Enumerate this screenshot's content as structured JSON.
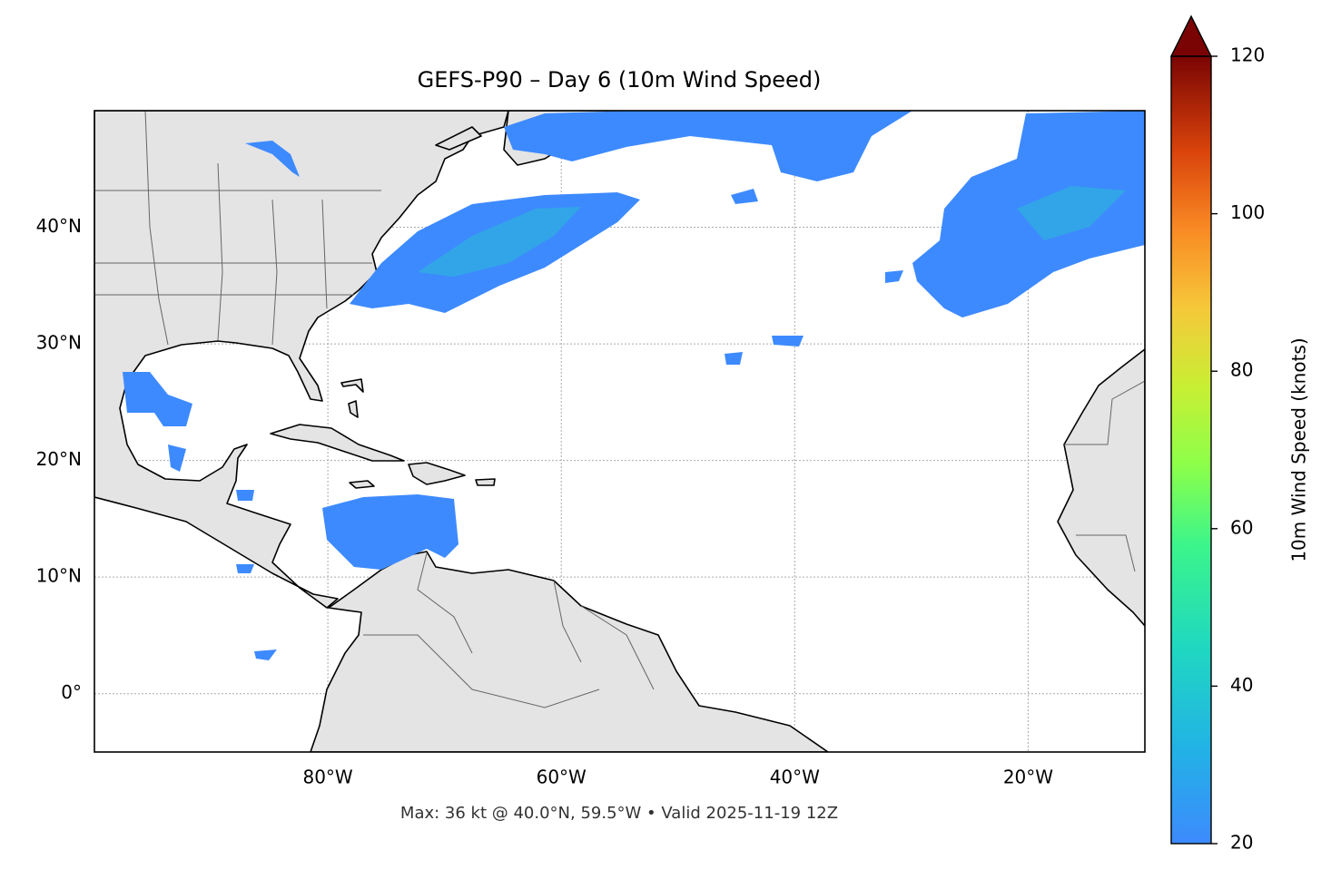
{
  "map": {
    "title": "GEFS-P90 – Day 6 (10m Wind Speed)",
    "lon_range": [
      -100,
      -10
    ],
    "lat_range": [
      -5,
      50
    ],
    "lon_ticks": [
      {
        "value": -80,
        "label": "80°W"
      },
      {
        "value": -60,
        "label": "60°W"
      },
      {
        "value": -40,
        "label": "40°W"
      },
      {
        "value": -20,
        "label": "20°W"
      }
    ],
    "lat_ticks": [
      {
        "value": 0,
        "label": "0°"
      },
      {
        "value": 10,
        "label": "10°N"
      },
      {
        "value": 20,
        "label": "20°N"
      },
      {
        "value": 30,
        "label": "30°N"
      },
      {
        "value": 40,
        "label": "40°N"
      }
    ],
    "footer": "Max: 36 kt @ 40.0°N, 59.5°W • Valid 2025-11-19 12Z",
    "colorbar": {
      "label": "10m Wind Speed (knots)",
      "range": [
        20,
        120
      ],
      "ticks": [
        20,
        40,
        60,
        80,
        100,
        120
      ]
    }
  }
}
